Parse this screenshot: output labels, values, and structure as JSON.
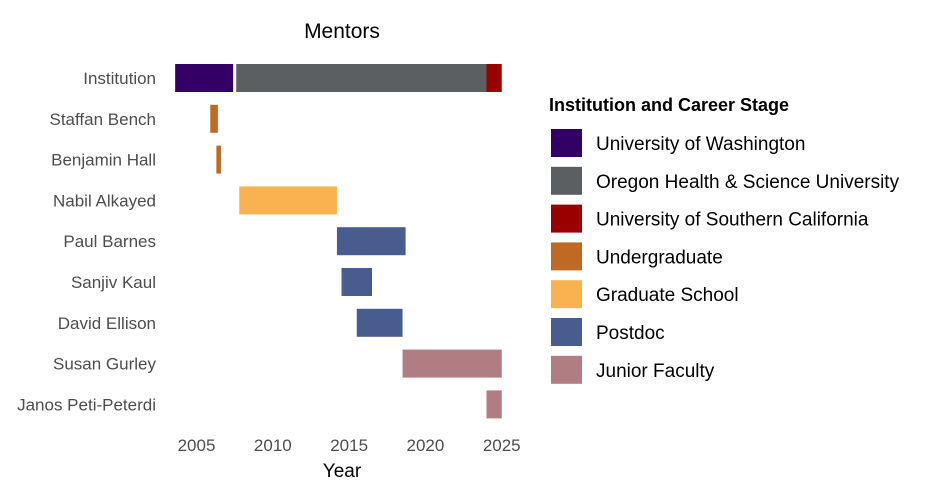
{
  "chart_data": {
    "type": "bar",
    "subtype": "horizontal-gantt",
    "title": "Mentors",
    "xlabel": "Year",
    "ylabel": "",
    "xlim": [
      2003,
      2026
    ],
    "xticks": [
      2005,
      2010,
      2015,
      2020,
      2025
    ],
    "grid": false,
    "legend_position": "right",
    "legend_title": "Institution and Career Stage",
    "legend": [
      {
        "label": "University of Washington",
        "color": "#330066"
      },
      {
        "label": "Oregon Health & Science University",
        "color": "#5b5f61"
      },
      {
        "label": "University of Southern California",
        "color": "#990000"
      },
      {
        "label": "Undergraduate",
        "color": "#be6a24"
      },
      {
        "label": "Graduate School",
        "color": "#f8b250"
      },
      {
        "label": "Postdoc",
        "color": "#485c90"
      },
      {
        "label": "Junior Faculty",
        "color": "#b07d83"
      }
    ],
    "categories": [
      "Institution",
      "Staffan Bench",
      "Benjamin Hall",
      "Nabil Alkayed",
      "Paul Barnes",
      "Sanjiv Kaul",
      "David Ellison",
      "Susan Gurley",
      "Janos Peti-Peterdi"
    ],
    "bars": [
      {
        "row": "Institution",
        "start": 2003.6,
        "end": 2007.4,
        "group": "University of Washington"
      },
      {
        "row": "Institution",
        "start": 2007.6,
        "end": 2024.0,
        "group": "Oregon Health & Science University"
      },
      {
        "row": "Institution",
        "start": 2024.0,
        "end": 2025.0,
        "group": "University of Southern California"
      },
      {
        "row": "Staffan Bench",
        "start": 2005.9,
        "end": 2006.4,
        "group": "Undergraduate"
      },
      {
        "row": "Benjamin Hall",
        "start": 2006.3,
        "end": 2006.6,
        "group": "Undergraduate"
      },
      {
        "row": "Nabil Alkayed",
        "start": 2007.8,
        "end": 2014.2,
        "group": "Graduate School"
      },
      {
        "row": "Paul Barnes",
        "start": 2014.2,
        "end": 2018.7,
        "group": "Postdoc"
      },
      {
        "row": "Sanjiv Kaul",
        "start": 2014.5,
        "end": 2016.5,
        "group": "Postdoc"
      },
      {
        "row": "David Ellison",
        "start": 2015.5,
        "end": 2018.5,
        "group": "Postdoc"
      },
      {
        "row": "Susan Gurley",
        "start": 2018.5,
        "end": 2025.0,
        "group": "Junior Faculty"
      },
      {
        "row": "Janos Peti-Peterdi",
        "start": 2024.0,
        "end": 2025.0,
        "group": "Junior Faculty"
      }
    ]
  }
}
